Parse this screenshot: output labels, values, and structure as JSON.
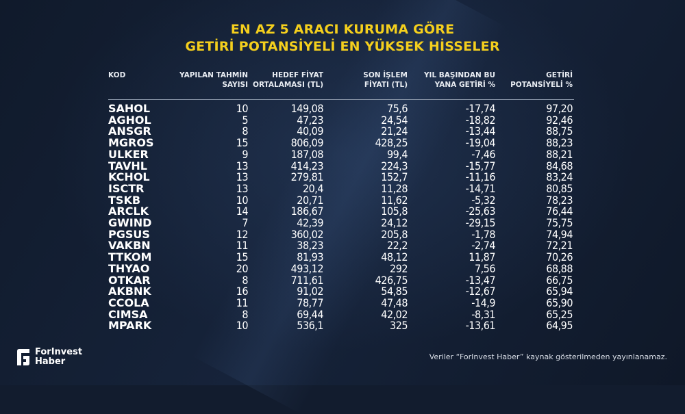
{
  "title": {
    "line1": "EN AZ 5 ARACI KURUMA GÖRE",
    "line2": "GETİRİ POTANSİYELİ EN YÜKSEK HİSSELER"
  },
  "columns": {
    "kod": "KOD",
    "count": [
      "YAPILAN TAHMİN",
      "SAYISI"
    ],
    "target": [
      "HEDEF FİYAT",
      "ORTALAMASI (TL)"
    ],
    "last": [
      "SON İŞLEM",
      "FİYATI (TL)"
    ],
    "ytd": [
      "YIL BAŞINDAN BU",
      "YANA GETİRİ %"
    ],
    "potential": [
      "GETİRİ",
      "POTANSİYELİ %"
    ]
  },
  "rows": [
    [
      "SAHOL",
      "10",
      "149,08",
      "75,6",
      "-17,74",
      "97,20"
    ],
    [
      "AGHOL",
      "5",
      "47,23",
      "24,54",
      "-18,82",
      "92,46"
    ],
    [
      "ANSGR",
      "8",
      "40,09",
      "21,24",
      "-13,44",
      "88,75"
    ],
    [
      "MGROS",
      "15",
      "806,09",
      "428,25",
      "-19,04",
      "88,23"
    ],
    [
      "ULKER",
      "9",
      "187,08",
      "99,4",
      "-7,46",
      "88,21"
    ],
    [
      "TAVHL",
      "13",
      "414,23",
      "224,3",
      "-15,77",
      "84,68"
    ],
    [
      "KCHOL",
      "13",
      "279,81",
      "152,7",
      "-11,16",
      "83,24"
    ],
    [
      "ISCTR",
      "13",
      "20,4",
      "11,28",
      "-14,71",
      "80,85"
    ],
    [
      "TSKB",
      "10",
      "20,71",
      "11,62",
      "-5,32",
      "78,23"
    ],
    [
      "ARCLK",
      "14",
      "186,67",
      "105,8",
      "-25,63",
      "76,44"
    ],
    [
      "GWIND",
      "7",
      "42,39",
      "24,12",
      "-29,15",
      "75,75"
    ],
    [
      "PGSUS",
      "12",
      "360,02",
      "205,8",
      "-1,78",
      "74,94"
    ],
    [
      "VAKBN",
      "11",
      "38,23",
      "22,2",
      "-2,74",
      "72,21"
    ],
    [
      "TTKOM",
      "15",
      "81,93",
      "48,12",
      "11,87",
      "70,26"
    ],
    [
      "THYAO",
      "20",
      "493,12",
      "292",
      "7,56",
      "68,88"
    ],
    [
      "OTKAR",
      "8",
      "711,61",
      "426,75",
      "-13,47",
      "66,75"
    ],
    [
      "AKBNK",
      "16",
      "91,02",
      "54,85",
      "-12,67",
      "65,94"
    ],
    [
      "CCOLA",
      "11",
      "78,77",
      "47,48",
      "-14,9",
      "65,90"
    ],
    [
      "CIMSA",
      "8",
      "69,44",
      "42,02",
      "-8,31",
      "65,25"
    ],
    [
      "MPARK",
      "10",
      "536,1",
      "325",
      "-13,61",
      "64,95"
    ]
  ],
  "logo": {
    "line1": "ForInvest",
    "line2": "Haber"
  },
  "footnote": "Veriler “ForInvest Haber” kaynak gösterilmeden yayınlanamaz.",
  "colors": {
    "title": "#f4cf1d",
    "background": "#121c2e"
  }
}
